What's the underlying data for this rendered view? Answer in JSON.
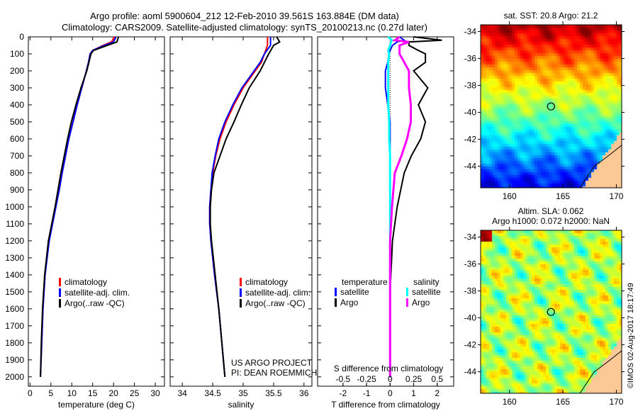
{
  "title_line1": "Argo profile: aoml 5900604_212 12-Feb-2010 39.561S 163.884E (DM data)",
  "title_line2": "Climatology: CARS2009. Satellite-adjusted climatology: synTS_20100213.nc (0.27d later)",
  "colors": {
    "climatology": "#ff0000",
    "satellite": "#0000ff",
    "argo": "#000000",
    "sal_satellite": "#00ffff",
    "sal_argo": "#ff00ff",
    "land": "#fcc896"
  },
  "credit": "©IMOS 02-Aug-2017 18:17:49",
  "chart_data": [
    {
      "type": "line",
      "name": "temperature-profile",
      "xlabel": "temperature (deg C)",
      "ylabel": "",
      "xlim": [
        -0.4,
        32.2
      ],
      "ylim": [
        2055,
        0
      ],
      "xticks": [
        0,
        5,
        10,
        15,
        20,
        25,
        30
      ],
      "yticks": [
        0,
        100,
        200,
        300,
        400,
        500,
        600,
        700,
        800,
        900,
        1000,
        1100,
        1200,
        1300,
        1400,
        1500,
        1600,
        1700,
        1800,
        1900,
        2000
      ],
      "legend": [
        "climatology",
        "satellite-adj. clim.",
        "Argo(..raw -QC)"
      ],
      "depth": [
        0,
        30,
        50,
        80,
        100,
        150,
        200,
        300,
        400,
        500,
        600,
        700,
        800,
        900,
        1000,
        1100,
        1200,
        1400,
        1600,
        1800,
        2000
      ],
      "series": [
        {
          "name": "climatology",
          "values": [
            20.2,
            19.5,
            17.5,
            15,
            14.4,
            14,
            13.5,
            12.4,
            11.3,
            10.3,
            9.3,
            8.5,
            7.7,
            7,
            6.1,
            5.3,
            4.5,
            3.6,
            3.1,
            2.8,
            2.5
          ]
        },
        {
          "name": "satellite-adj. clim.",
          "values": [
            20.6,
            20,
            17.8,
            15,
            14.4,
            14,
            13.5,
            12.4,
            11.3,
            10.3,
            9.3,
            8.5,
            7.7,
            7,
            6.2,
            5.4,
            4.6,
            3.6,
            3.1,
            2.8,
            2.5
          ]
        },
        {
          "name": "Argo(..raw -QC)",
          "values": [
            21.2,
            20.8,
            18.5,
            15.2,
            14.6,
            14.1,
            13.6,
            12.2,
            11,
            9.9,
            9,
            8.2,
            7.4,
            6.7,
            6,
            5.2,
            4.4,
            3.5,
            3.0,
            2.7,
            2.5
          ]
        }
      ]
    },
    {
      "type": "line",
      "name": "salinity-profile",
      "xlabel": "salinity",
      "xlim": [
        33.8,
        36.13
      ],
      "ylim": [
        2055,
        0
      ],
      "xticks": [
        34,
        34.5,
        35,
        35.5,
        36
      ],
      "legend": [
        "climatology",
        "satellite-adj. clim.",
        "Argo(..raw -QC)"
      ],
      "annotation": [
        "US ARGO PROJECT",
        "PI: DEAN ROEMMICH"
      ],
      "depth": [
        0,
        30,
        50,
        100,
        150,
        200,
        300,
        400,
        500,
        600,
        700,
        800,
        900,
        1000,
        1100,
        1200,
        1400,
        1600,
        1800,
        2000
      ],
      "series": [
        {
          "name": "climatology",
          "values": [
            35.4,
            35.4,
            35.4,
            35.35,
            35.3,
            35.2,
            35.0,
            34.85,
            34.72,
            34.62,
            34.55,
            34.5,
            34.47,
            34.45,
            34.45,
            34.47,
            34.53,
            34.6,
            34.65,
            34.7
          ]
        },
        {
          "name": "satellite-adj. clim.",
          "values": [
            35.45,
            35.45,
            35.45,
            35.35,
            35.28,
            35.18,
            34.98,
            34.83,
            34.7,
            34.6,
            34.54,
            34.49,
            34.47,
            34.45,
            34.45,
            34.47,
            34.53,
            34.6,
            34.65,
            34.7
          ]
        },
        {
          "name": "Argo(..raw -QC)",
          "values": [
            35.55,
            35.6,
            35.5,
            35.42,
            35.35,
            35.28,
            35.1,
            34.97,
            34.85,
            34.72,
            34.62,
            34.52,
            34.48,
            34.46,
            34.46,
            34.48,
            34.54,
            34.6,
            34.65,
            34.7
          ]
        }
      ]
    },
    {
      "type": "line",
      "name": "difference-profile",
      "xlabel": "T difference from climatology",
      "xlabel2": "S difference from climatology",
      "xlim": [
        -3.08,
        2.7
      ],
      "xticks": [
        -2,
        -1,
        0,
        1,
        2
      ],
      "xticks2": [
        -0.5,
        -0.25,
        0,
        0.25,
        0.5
      ],
      "legend_t_title": "temperature",
      "legend_s_title": "salinity",
      "legend_items": [
        "satellite",
        "Argo",
        "satellite",
        "Argo"
      ],
      "depth": [
        0,
        20,
        30,
        50,
        80,
        100,
        150,
        200,
        300,
        400,
        500,
        600,
        700,
        800,
        1000,
        1200,
        1500,
        2000
      ],
      "series": [
        {
          "name": "T satellite",
          "values": [
            0.4,
            0.6,
            0.3,
            0.1,
            0,
            -0.05,
            -0.1,
            -0.2,
            -0.2,
            -0.1,
            0,
            0,
            0,
            0,
            0,
            0,
            0,
            0
          ]
        },
        {
          "name": "T Argo",
          "values": [
            1.0,
            2.2,
            0.8,
            0.8,
            1.2,
            1.5,
            1.5,
            1.0,
            1.6,
            1.2,
            1.5,
            1.3,
            0.9,
            0.6,
            0.3,
            0.1,
            0,
            0
          ]
        },
        {
          "name": "S satellite",
          "values": [
            -0.02,
            0.02,
            0.01,
            0,
            -0.02,
            -0.01,
            -0.02,
            -0.02,
            -0.02,
            -0.02,
            -0.01,
            -0.01,
            0,
            0,
            0,
            0,
            0,
            0
          ]
        },
        {
          "name": "S Argo",
          "values": [
            0.1,
            0.05,
            0.2,
            0.1,
            0.1,
            0.1,
            0.15,
            0.2,
            0.2,
            0.22,
            0.22,
            0.18,
            0.12,
            0.05,
            0.02,
            0,
            0,
            0
          ]
        }
      ]
    },
    {
      "type": "heatmap",
      "name": "sst-map",
      "title": "sat. SST: 20.8 Argo: 21.2",
      "xlim": [
        157.3,
        170.5
      ],
      "ylim": [
        -45.6,
        -33.5
      ],
      "xticks": [
        160,
        165,
        170
      ],
      "yticks": [
        -34,
        -36,
        -38,
        -40,
        -42,
        -44
      ],
      "marker": {
        "lon": 163.884,
        "lat": -39.561
      }
    },
    {
      "type": "heatmap",
      "name": "sla-map",
      "title": "Altim. SLA: 0.062",
      "subtitle": "Argo h1000: 0.072 h2000: NaN",
      "xlim": [
        157.3,
        170.5
      ],
      "ylim": [
        -45.6,
        -33.5
      ],
      "xticks": [
        160,
        165,
        170
      ],
      "yticks": [
        -34,
        -36,
        -38,
        -40,
        -42,
        -44
      ],
      "marker": {
        "lon": 163.884,
        "lat": -39.561
      }
    }
  ]
}
